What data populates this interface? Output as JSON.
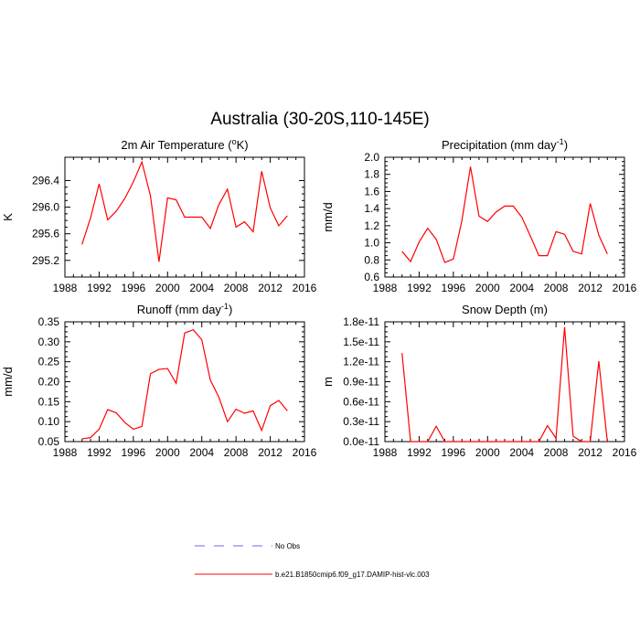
{
  "figure_title": "Australia (30-20S,110-145E)",
  "legend": {
    "entries": [
      {
        "label": "No Obs",
        "color": "#6a6af0",
        "dashed": true
      },
      {
        "label": "b.e21.B1850cmip6.f09_g17.DAMIP-hist-vlc.003",
        "color": "#ff0000",
        "dashed": false
      }
    ]
  },
  "chart_data": [
    {
      "type": "line",
      "title": "2m Air Temperature (",
      "title_sup": "o",
      "title_end": "K)",
      "ylabel": "K",
      "xlim": [
        1988,
        2016
      ],
      "xticks": [
        "1988",
        "1992",
        "1996",
        "2000",
        "2004",
        "2008",
        "2012",
        "2016"
      ],
      "ylim": [
        294.95,
        296.75
      ],
      "yticks": [
        "295.2",
        "295.6",
        "296.0",
        "296.4"
      ],
      "x": [
        1990,
        1991,
        1992,
        1993,
        1994,
        1995,
        1996,
        1997,
        1998,
        1999,
        2000,
        2001,
        2002,
        2003,
        2004,
        2005,
        2006,
        2007,
        2008,
        2009,
        2010,
        2011,
        2012,
        2013,
        2014
      ],
      "series": [
        {
          "color": "#ff0000",
          "values": [
            295.44,
            295.84,
            296.35,
            295.81,
            295.94,
            296.13,
            296.38,
            296.68,
            296.17,
            295.18,
            296.14,
            296.11,
            295.85,
            295.85,
            295.85,
            295.68,
            296.04,
            296.27,
            295.7,
            295.78,
            295.63,
            296.54,
            295.99,
            295.72,
            295.87
          ]
        }
      ]
    },
    {
      "type": "line",
      "title": "Precipitation (mm day",
      "title_sup": "-1",
      "title_end": ")",
      "ylabel": "mm/d",
      "xlim": [
        1988,
        2016
      ],
      "xticks": [
        "1988",
        "1992",
        "1996",
        "2000",
        "2004",
        "2008",
        "2012",
        "2016"
      ],
      "ylim": [
        0.6,
        2.0
      ],
      "yticks": [
        "0.6",
        "0.8",
        "1.0",
        "1.2",
        "1.4",
        "1.6",
        "1.8",
        "2.0"
      ],
      "x": [
        1990,
        1991,
        1992,
        1993,
        1994,
        1995,
        1996,
        1997,
        1998,
        1999,
        2000,
        2001,
        2002,
        2003,
        2004,
        2005,
        2006,
        2007,
        2008,
        2009,
        2010,
        2011,
        2012,
        2013,
        2014
      ],
      "series": [
        {
          "color": "#ff0000",
          "values": [
            0.9,
            0.78,
            1.01,
            1.17,
            1.04,
            0.77,
            0.81,
            1.26,
            1.89,
            1.31,
            1.25,
            1.36,
            1.43,
            1.43,
            1.3,
            1.08,
            0.85,
            0.85,
            1.13,
            1.1,
            0.9,
            0.87,
            1.46,
            1.09,
            0.87
          ]
        }
      ]
    },
    {
      "type": "line",
      "title": "Runoff (mm day",
      "title_sup": "-1",
      "title_end": ")",
      "ylabel": "mm/d",
      "xlim": [
        1988,
        2016
      ],
      "xticks": [
        "1988",
        "1992",
        "1996",
        "2000",
        "2004",
        "2008",
        "2012",
        "2016"
      ],
      "ylim": [
        0.05,
        0.35
      ],
      "yticks": [
        "0.05",
        "0.10",
        "0.15",
        "0.20",
        "0.25",
        "0.30",
        "0.35"
      ],
      "x": [
        1990,
        1991,
        1992,
        1993,
        1994,
        1995,
        1996,
        1997,
        1998,
        1999,
        2000,
        2001,
        2002,
        2003,
        2004,
        2005,
        2006,
        2007,
        2008,
        2009,
        2010,
        2011,
        2012,
        2013,
        2014
      ],
      "series": [
        {
          "color": "#ff0000",
          "values": [
            0.057,
            0.06,
            0.081,
            0.13,
            0.122,
            0.098,
            0.081,
            0.088,
            0.22,
            0.231,
            0.233,
            0.196,
            0.322,
            0.33,
            0.305,
            0.204,
            0.161,
            0.1,
            0.131,
            0.121,
            0.127,
            0.078,
            0.14,
            0.153,
            0.127
          ]
        }
      ]
    },
    {
      "type": "line",
      "title": "Snow Depth (m)",
      "title_sup": "",
      "title_end": "",
      "ylabel": "m",
      "xlim": [
        1988,
        2016
      ],
      "xticks": [
        "1988",
        "1992",
        "1996",
        "2000",
        "2004",
        "2008",
        "2012",
        "2016"
      ],
      "ylim": [
        0,
        1.8e-11
      ],
      "yticks": [
        "0.0e-11",
        "0.3e-11",
        "0.6e-11",
        "0.9e-11",
        "1.2e-11",
        "1.5e-11",
        "1.8e-11"
      ],
      "x": [
        1990,
        1991,
        1992,
        1993,
        1994,
        1995,
        1996,
        1997,
        1998,
        1999,
        2000,
        2001,
        2002,
        2003,
        2004,
        2005,
        2006,
        2007,
        2008,
        2009,
        2010,
        2011,
        2012,
        2013,
        2014
      ],
      "series": [
        {
          "color": "#ff0000",
          "values": [
            1.33e-11,
            0,
            0,
            0,
            2.3e-12,
            0,
            0,
            0,
            0,
            0,
            0,
            0,
            0,
            0,
            0,
            0,
            0,
            2.4e-12,
            5e-13,
            1.72e-11,
            8e-13,
            0,
            0,
            1.21e-11,
            0
          ]
        }
      ]
    }
  ]
}
